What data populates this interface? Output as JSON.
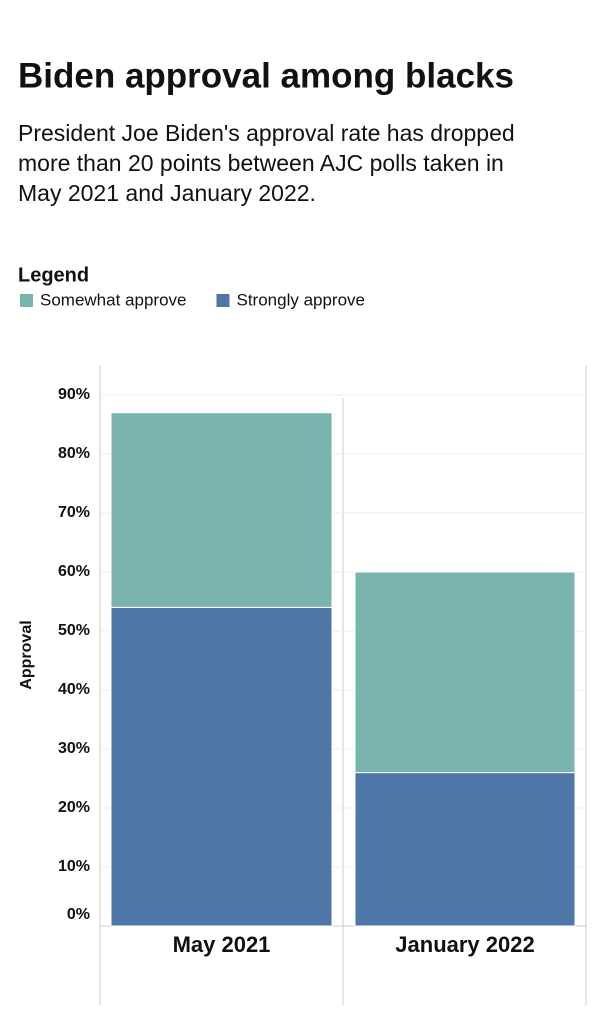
{
  "chart_data": {
    "type": "stacked-bar",
    "title": "Biden approval among blacks",
    "subtitle": [
      "President Joe Biden's approval rate has dropped",
      "more than 20 points between AJC polls taken in",
      "May 2021 and January 2022."
    ],
    "legend_title": "Legend",
    "y_label": "Approval",
    "categories": [
      "May 2021",
      "January 2022"
    ],
    "series": [
      {
        "name": "Somewhat approve",
        "color": "#79b5ae",
        "values": [
          33,
          34
        ]
      },
      {
        "name": "Strongly approve",
        "color": "#4e76a6",
        "values": [
          54,
          26
        ]
      }
    ],
    "ylim": [
      0,
      90
    ],
    "yticks": [
      {
        "value": 0,
        "label": "0%"
      },
      {
        "value": 10,
        "label": "10%"
      },
      {
        "value": 20,
        "label": "20%"
      },
      {
        "value": 30,
        "label": "30%"
      },
      {
        "value": 40,
        "label": "40%"
      },
      {
        "value": 50,
        "label": "50%"
      },
      {
        "value": 60,
        "label": "60%"
      },
      {
        "value": 70,
        "label": "70%"
      },
      {
        "value": 80,
        "label": "80%"
      },
      {
        "value": 90,
        "label": "90%"
      }
    ],
    "grid": true
  }
}
